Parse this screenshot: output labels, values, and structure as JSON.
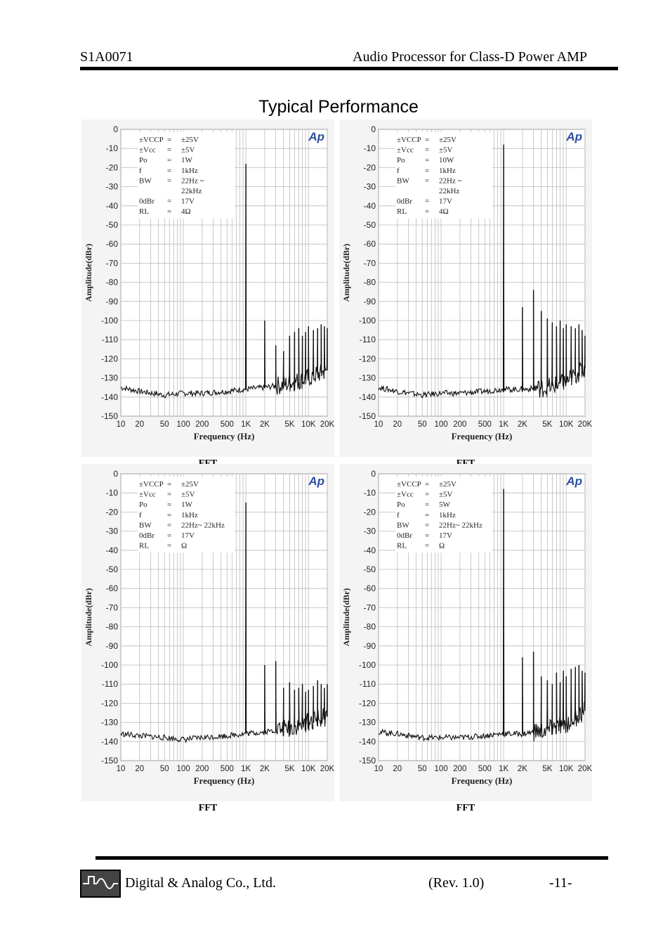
{
  "header": {
    "part_number": "S1A0071",
    "doc_title": "Audio Processor for Class-D Power AMP"
  },
  "page_title": "Typical Performance",
  "footer": {
    "company": "Digital & Analog Co., Ltd.",
    "revision": "(Rev. 1.0)",
    "page": "-11-"
  },
  "chart_data": [
    {
      "type": "line",
      "title": "FFT",
      "xlabel": "Frequency (Hz)",
      "ylabel": "Amplitude(dBr)",
      "x_scale": "log",
      "xlim": [
        10,
        20000
      ],
      "ylim": [
        -150,
        0
      ],
      "x_ticks": [
        "10",
        "20",
        "50",
        "100",
        "200",
        "500",
        "1K",
        "2K",
        "5K",
        "10K",
        "20K"
      ],
      "y_ticks": [
        "0",
        "-10",
        "-20",
        "-30",
        "-40",
        "-50",
        "-60",
        "-70",
        "-80",
        "-90",
        "-100",
        "-110",
        "-120",
        "-130",
        "-140",
        "-150"
      ],
      "logo": "Ap",
      "grid": true,
      "legend_box": [
        [
          "±VCCP",
          "=",
          "±25V"
        ],
        [
          "±Vcc",
          "=",
          "±5V"
        ],
        [
          "Po",
          "=",
          "1W"
        ],
        [
          "f",
          "=",
          "1kHz"
        ],
        [
          "BW",
          "=",
          "22Hz           ~"
        ],
        [
          "",
          "",
          "22kHz"
        ],
        [
          "0dBr",
          "=",
          "17V"
        ],
        [
          "RL",
          "=",
          "4Ω"
        ]
      ],
      "noise_floor": [
        [
          10,
          -135
        ],
        [
          20,
          -137
        ],
        [
          50,
          -139
        ],
        [
          100,
          -138
        ],
        [
          200,
          -138
        ],
        [
          500,
          -137
        ],
        [
          900,
          -136
        ],
        [
          2000,
          -135
        ],
        [
          5000,
          -133
        ],
        [
          10000,
          -130
        ],
        [
          20000,
          -126
        ]
      ],
      "spikes": [
        [
          1000,
          -18
        ],
        [
          2000,
          -100
        ],
        [
          3000,
          -113
        ],
        [
          4000,
          -116
        ],
        [
          5000,
          -108
        ],
        [
          6000,
          -106
        ],
        [
          7000,
          -104
        ],
        [
          8000,
          -108
        ],
        [
          9000,
          -106
        ],
        [
          10000,
          -103
        ],
        [
          12000,
          -105
        ],
        [
          14000,
          -104
        ],
        [
          16000,
          -102
        ],
        [
          18000,
          -103
        ],
        [
          20000,
          -104
        ]
      ]
    },
    {
      "type": "line",
      "title": "FFT",
      "xlabel": "Frequency (Hz)",
      "ylabel": "Amplitude(dBr)",
      "x_scale": "log",
      "xlim": [
        10,
        20000
      ],
      "ylim": [
        -150,
        0
      ],
      "x_ticks": [
        "10",
        "20",
        "50",
        "100",
        "200",
        "500",
        "1K",
        "2K",
        "5K",
        "10K",
        "20K"
      ],
      "y_ticks": [
        "0",
        "-10",
        "-20",
        "-30",
        "-40",
        "-50",
        "-60",
        "-70",
        "-80",
        "-90",
        "-100",
        "-110",
        "-120",
        "-130",
        "-140",
        "-150"
      ],
      "logo": "Ap",
      "grid": true,
      "legend_box": [
        [
          "±VCCP",
          "=",
          "±25V"
        ],
        [
          "±Vcc",
          "=",
          "±5V"
        ],
        [
          "Po",
          "=",
          "10W"
        ],
        [
          "f",
          "=",
          "1kHz"
        ],
        [
          "BW",
          "=",
          "22Hz           ~"
        ],
        [
          "",
          "",
          "22kHz"
        ],
        [
          "0dBr",
          "=",
          "17V"
        ],
        [
          "RL",
          "=",
          "4Ω"
        ]
      ],
      "noise_floor": [
        [
          10,
          -135
        ],
        [
          20,
          -137
        ],
        [
          50,
          -139
        ],
        [
          100,
          -138
        ],
        [
          200,
          -138
        ],
        [
          500,
          -137
        ],
        [
          900,
          -136
        ],
        [
          2000,
          -136
        ],
        [
          5000,
          -135
        ],
        [
          10000,
          -132
        ],
        [
          20000,
          -125
        ]
      ],
      "spikes": [
        [
          1000,
          -8
        ],
        [
          2000,
          -93
        ],
        [
          3000,
          -84
        ],
        [
          4000,
          -95
        ],
        [
          5000,
          -99
        ],
        [
          6000,
          -101
        ],
        [
          7000,
          -103
        ],
        [
          8000,
          -100
        ],
        [
          9000,
          -104
        ],
        [
          10000,
          -102
        ],
        [
          12000,
          -103
        ],
        [
          14000,
          -104
        ],
        [
          16000,
          -102
        ],
        [
          18000,
          -105
        ],
        [
          20000,
          -108
        ]
      ]
    },
    {
      "type": "line",
      "title": "FFT",
      "xlabel": "Frequency (Hz)",
      "ylabel": "Amplitude(dBr)",
      "x_scale": "log",
      "xlim": [
        10,
        20000
      ],
      "ylim": [
        -150,
        0
      ],
      "x_ticks": [
        "10",
        "20",
        "50",
        "100",
        "200",
        "500",
        "1K",
        "2K",
        "5K",
        "10K",
        "20K"
      ],
      "y_ticks": [
        "0",
        "-10",
        "-20",
        "-30",
        "-40",
        "-50",
        "-60",
        "-70",
        "-80",
        "-90",
        "-100",
        "-110",
        "-120",
        "-130",
        "-140",
        "-150"
      ],
      "logo": "Ap",
      "grid": true,
      "legend_box": [
        [
          "±VCCP",
          "=",
          "±25V"
        ],
        [
          "±Vcc",
          "=",
          "±5V"
        ],
        [
          "Po",
          "=",
          "1W"
        ],
        [
          "f",
          "=",
          "1kHz"
        ],
        [
          "BW",
          "=",
          "22Hz~ 22kHz"
        ],
        [
          "0dBr",
          "=",
          "17V"
        ],
        [
          "RL",
          "=",
          " Ω"
        ]
      ],
      "noise_floor": [
        [
          10,
          -136
        ],
        [
          20,
          -137
        ],
        [
          50,
          -138
        ],
        [
          100,
          -139
        ],
        [
          200,
          -138
        ],
        [
          500,
          -137
        ],
        [
          900,
          -136
        ],
        [
          2000,
          -135
        ],
        [
          5000,
          -133
        ],
        [
          10000,
          -130
        ],
        [
          20000,
          -127
        ]
      ],
      "spikes": [
        [
          1000,
          -15
        ],
        [
          2000,
          -100
        ],
        [
          3000,
          -98
        ],
        [
          4000,
          -112
        ],
        [
          5000,
          -109
        ],
        [
          6000,
          -113
        ],
        [
          7000,
          -112
        ],
        [
          8000,
          -110
        ],
        [
          9000,
          -114
        ],
        [
          10000,
          -113
        ],
        [
          12000,
          -111
        ],
        [
          14000,
          -108
        ],
        [
          16000,
          -110
        ],
        [
          18000,
          -112
        ],
        [
          20000,
          -110
        ]
      ]
    },
    {
      "type": "line",
      "title": "FFT",
      "xlabel": "Frequency (Hz)",
      "ylabel": "Amplitude(dBr)",
      "x_scale": "log",
      "xlim": [
        10,
        20000
      ],
      "ylim": [
        -150,
        0
      ],
      "x_ticks": [
        "10",
        "20",
        "50",
        "100",
        "200",
        "500",
        "1K",
        "2K",
        "5K",
        "10K",
        "20K"
      ],
      "y_ticks": [
        "0",
        "-10",
        "-20",
        "-30",
        "-40",
        "-50",
        "-60",
        "-70",
        "-80",
        "-90",
        "-100",
        "-110",
        "-120",
        "-130",
        "-140",
        "-150"
      ],
      "logo": "Ap",
      "grid": true,
      "legend_box": [
        [
          "±VCCP",
          "=",
          "±25V"
        ],
        [
          "±Vcc",
          "=",
          "±5V"
        ],
        [
          "Po",
          "=",
          "5W"
        ],
        [
          "f",
          "=",
          "1kHz"
        ],
        [
          "BW",
          "=",
          "22Hz~ 22kHz"
        ],
        [
          "0dBr",
          "=",
          "17V"
        ],
        [
          "RL",
          "=",
          " Ω"
        ]
      ],
      "noise_floor": [
        [
          10,
          -135
        ],
        [
          20,
          -136
        ],
        [
          50,
          -138
        ],
        [
          100,
          -138
        ],
        [
          200,
          -138
        ],
        [
          500,
          -137
        ],
        [
          900,
          -136
        ],
        [
          2000,
          -136
        ],
        [
          5000,
          -134
        ],
        [
          10000,
          -131
        ],
        [
          20000,
          -124
        ]
      ],
      "spikes": [
        [
          1000,
          -8
        ],
        [
          2000,
          -96
        ],
        [
          3000,
          -93
        ],
        [
          4000,
          -106
        ],
        [
          5000,
          -108
        ],
        [
          6000,
          -110
        ],
        [
          7000,
          -104
        ],
        [
          8000,
          -109
        ],
        [
          9000,
          -103
        ],
        [
          10000,
          -106
        ],
        [
          12000,
          -102
        ],
        [
          14000,
          -101
        ],
        [
          16000,
          -100
        ],
        [
          18000,
          -103
        ],
        [
          20000,
          -104
        ]
      ]
    }
  ]
}
